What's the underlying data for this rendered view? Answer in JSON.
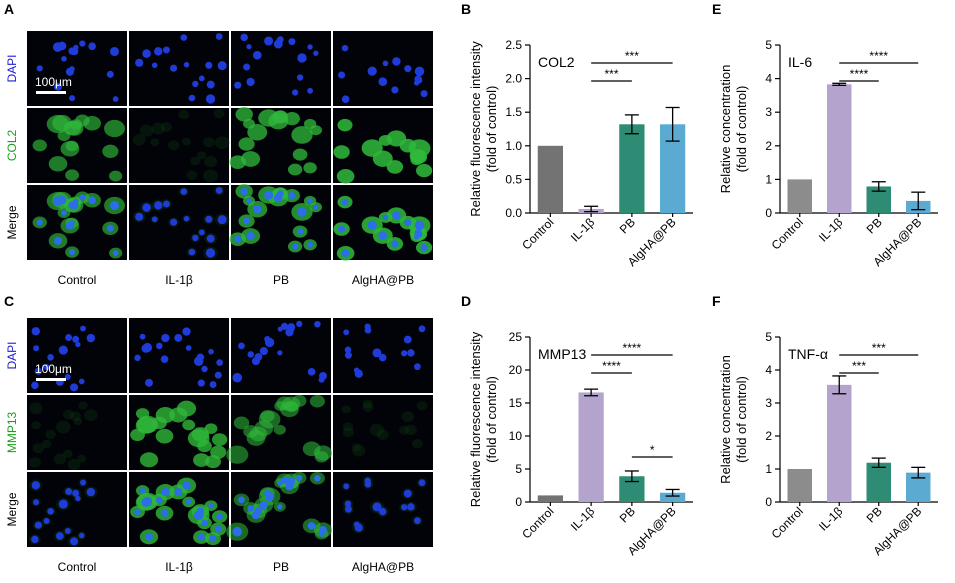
{
  "micrographs": [
    {
      "panel": "A",
      "rows": [
        {
          "label": "DAPI",
          "color": "#1c1cd0"
        },
        {
          "label": "COL2",
          "color": "#1aa01a"
        },
        {
          "label": "Merge",
          "color": "#000000"
        }
      ],
      "columns": [
        "Control",
        "IL-1β",
        "PB",
        "AlgHA@PB"
      ],
      "scale_bar": "100μm",
      "green_level": [
        0.65,
        0.04,
        0.8,
        0.95
      ]
    },
    {
      "panel": "C",
      "rows": [
        {
          "label": "DAPI",
          "color": "#1c1cd0"
        },
        {
          "label": "MMP13",
          "color": "#1aa01a"
        },
        {
          "label": "Merge",
          "color": "#000000"
        }
      ],
      "columns": [
        "Control",
        "IL-1β",
        "PB",
        "AlgHA@PB"
      ],
      "scale_bar": "100μm",
      "green_level": [
        0.04,
        0.85,
        0.5,
        0.06
      ]
    }
  ],
  "chart_data": [
    {
      "panel": "B",
      "type": "bar",
      "title": "COL2",
      "ylabel": [
        "Relative fluorescence intensity",
        "(fold of control)"
      ],
      "categories": [
        "Control",
        "IL-1β",
        "PB",
        "AlgHA@PB"
      ],
      "values": [
        1.0,
        0.06,
        1.32,
        1.32
      ],
      "errors": [
        0,
        0.04,
        0.14,
        0.25
      ],
      "colors": [
        "#737373",
        "#b4a4cd",
        "#2e8b74",
        "#5baad2"
      ],
      "ylim": [
        0,
        2.5
      ],
      "yticks": [
        0,
        0.5,
        1.0,
        1.5,
        2.0,
        2.5
      ],
      "ytick_labels": [
        "0.0",
        "0.5",
        "1.0",
        "1.5",
        "2.0",
        "2.5"
      ],
      "significance": [
        {
          "from": 1,
          "to": 2,
          "label": "***"
        },
        {
          "from": 1,
          "to": 3,
          "label": "***"
        }
      ]
    },
    {
      "panel": "D",
      "type": "bar",
      "title": "MMP13",
      "ylabel": [
        "Relative fluorescence intensity",
        "(fold of control)"
      ],
      "categories": [
        "Control",
        "IL-1β",
        "PB",
        "AlgHA@PB"
      ],
      "values": [
        1.0,
        16.6,
        3.9,
        1.4
      ],
      "errors": [
        0,
        0.5,
        0.8,
        0.5
      ],
      "colors": [
        "#737373",
        "#b4a4cd",
        "#2e8b74",
        "#5baad2"
      ],
      "ylim": [
        0,
        25
      ],
      "yticks": [
        0,
        5,
        10,
        15,
        20,
        25
      ],
      "ytick_labels": [
        "0",
        "5",
        "10",
        "15",
        "20",
        "25"
      ],
      "significance": [
        {
          "from": 1,
          "to": 2,
          "label": "****"
        },
        {
          "from": 1,
          "to": 3,
          "label": "****"
        },
        {
          "from": 2,
          "to": 3,
          "label": "*"
        }
      ]
    },
    {
      "panel": "E",
      "type": "bar",
      "title": "IL-6",
      "ylabel": [
        "Relative concentration",
        "(fold of control)"
      ],
      "categories": [
        "Control",
        "IL-1β",
        "PB",
        "AlgHA@PB"
      ],
      "values": [
        1.0,
        3.83,
        0.79,
        0.36
      ],
      "errors": [
        0,
        0.03,
        0.14,
        0.26
      ],
      "colors": [
        "#8c8c8c",
        "#b4a4cd",
        "#2e8b74",
        "#5baad2"
      ],
      "ylim": [
        0,
        5
      ],
      "yticks": [
        0,
        1,
        2,
        3,
        4,
        5
      ],
      "ytick_labels": [
        "0",
        "1",
        "2",
        "3",
        "4",
        "5"
      ],
      "significance": [
        {
          "from": 1,
          "to": 2,
          "label": "****"
        },
        {
          "from": 1,
          "to": 3,
          "label": "****"
        }
      ]
    },
    {
      "panel": "F",
      "type": "bar",
      "title": "TNF-α",
      "ylabel": [
        "Relative concentration",
        "(fold of control)"
      ],
      "categories": [
        "Control",
        "IL-1β",
        "PB",
        "AlgHA@PB"
      ],
      "values": [
        1.0,
        3.55,
        1.19,
        0.89
      ],
      "errors": [
        0,
        0.27,
        0.14,
        0.16
      ],
      "colors": [
        "#8c8c8c",
        "#b4a4cd",
        "#2e8b74",
        "#5baad2"
      ],
      "ylim": [
        0,
        5
      ],
      "yticks": [
        0,
        1,
        2,
        3,
        4,
        5
      ],
      "ytick_labels": [
        "0",
        "1",
        "2",
        "3",
        "4",
        "5"
      ],
      "significance": [
        {
          "from": 1,
          "to": 2,
          "label": "***"
        },
        {
          "from": 1,
          "to": 3,
          "label": "***"
        }
      ]
    }
  ]
}
